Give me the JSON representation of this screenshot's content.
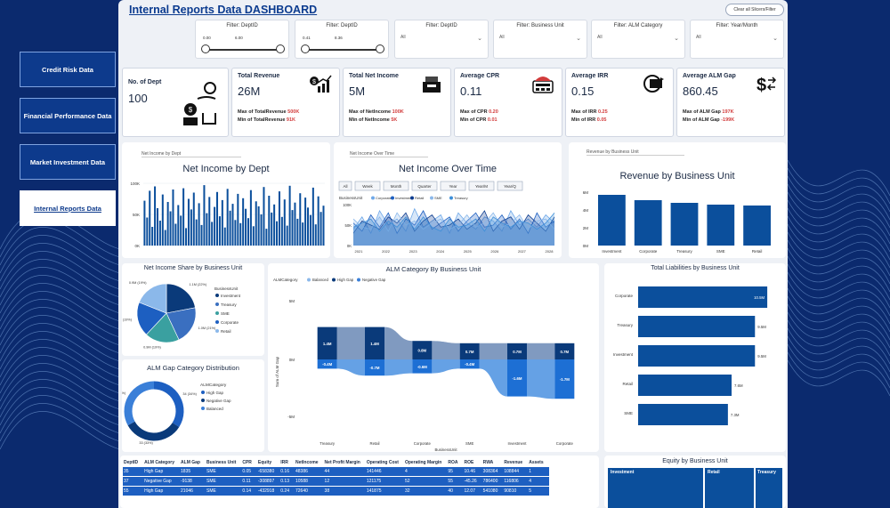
{
  "nav": {
    "items": [
      {
        "label": "Credit Risk Data",
        "active": false
      },
      {
        "label": "Financial Performance Data",
        "active": false
      },
      {
        "label": "Market Investment Data",
        "active": false
      },
      {
        "label": "Internal Reports Data",
        "active": true
      }
    ]
  },
  "header": {
    "title": "Internal Reports Data DASHBOARD",
    "clear_label": "Clear all Slicers/Filter"
  },
  "filters": [
    {
      "label": "Filter: DeptID",
      "kind": "slider",
      "min": "0.00",
      "max": "6.00"
    },
    {
      "label": "Filter: DeptID",
      "kind": "slider",
      "min": "0.41",
      "max": "8.36"
    },
    {
      "label": "Filter: DeptID",
      "kind": "dropdown",
      "value": "All"
    },
    {
      "label": "Filter: Business Unit",
      "kind": "dropdown",
      "value": "All"
    },
    {
      "label": "Filter: ALM Category",
      "kind": "dropdown",
      "value": "All"
    },
    {
      "label": "Filter: Year/Month",
      "kind": "dropdown",
      "value": "All"
    }
  ],
  "kpis": {
    "dept": {
      "title": "No. of Dept",
      "value": "100",
      "icon": "money-hand-icon"
    },
    "cards": [
      {
        "title": "Total Revenue",
        "value": "26M",
        "max_label": "Max of TotalRevenue",
        "max": "500K",
        "min_label": "Min of TotalRevenue",
        "min": "91K",
        "icon": "dollar-trend-icon"
      },
      {
        "title": "Total Net Income",
        "value": "5M",
        "max_label": "Max of NetIncome",
        "max": "100K",
        "min_label": "Min of NetIncome",
        "min": "5K",
        "icon": "cash-register-icon"
      },
      {
        "title": "Average CPR",
        "value": "0.11",
        "max_label": "Max of CPR",
        "max": "0.20",
        "min_label": "Min of CPR",
        "min": "0.01",
        "icon": "calculator-icon"
      },
      {
        "title": "Average IRR",
        "value": "0.15",
        "max_label": "Max of IRR",
        "max": "0.25",
        "min_label": "Min of IRR",
        "min": "0.05",
        "icon": "refund-icon"
      },
      {
        "title": "Average ALM Gap",
        "value": "860.45",
        "max_label": "Max of ALM Gap",
        "max": "197K",
        "min_label": "Min of ALM Gap",
        "min": "-199K",
        "icon": "dollar-exchange-icon"
      }
    ]
  },
  "colors": {
    "primary": "#0b4f9c",
    "dark": "#0a3a7a",
    "mid": "#2e77c8",
    "light": "#8bb8ea",
    "teal": "#3b9c9c",
    "red": "#d23b3b"
  },
  "net_income_by_dept": {
    "dropdown": "Net Income by Dept",
    "title": "Net Income by Dept",
    "y_ticks": [
      "100K",
      "50K",
      "0K"
    ],
    "values": [
      72,
      45,
      88,
      30,
      95,
      60,
      40,
      82,
      25,
      70,
      55,
      90,
      35,
      65,
      48,
      92,
      28,
      75,
      58,
      85,
      42,
      68,
      33,
      97,
      52,
      78,
      38,
      62,
      86,
      47,
      73,
      29,
      91,
      56,
      67,
      41,
      83,
      36,
      76,
      59,
      44,
      89,
      31,
      71,
      63,
      50,
      94,
      27,
      80,
      53,
      66,
      39,
      87,
      46,
      74,
      32,
      96,
      57,
      69,
      43,
      84,
      37,
      77,
      61,
      49,
      93,
      34,
      79,
      54,
      64
    ]
  },
  "net_income_over_time": {
    "dropdown": "Net Income Over Time",
    "title": "Net Income Over Time",
    "tabs": [
      "All",
      "Week",
      "Month",
      "Quarter",
      "Year",
      "Year/M",
      "Year/Q"
    ],
    "legend_label": "BusinessUnit",
    "legend": [
      "Corporate",
      "Investment",
      "Retail",
      "SME",
      "Treasury"
    ],
    "x_ticks": [
      "2021",
      "2022",
      "2023",
      "2024",
      "2025",
      "2026",
      "2027",
      "2028"
    ],
    "y_ticks": [
      "100K",
      "50K",
      "0K"
    ],
    "series": [
      {
        "name": "Corporate",
        "values": [
          40,
          70,
          30,
          85,
          50,
          65,
          35,
          90,
          45,
          60,
          75,
          30,
          80,
          55,
          40,
          70,
          60,
          35,
          85,
          50,
          65,
          45,
          75,
          55
        ]
      },
      {
        "name": "Investment",
        "values": [
          55,
          35,
          75,
          45,
          80,
          30,
          65,
          50,
          85,
          40,
          55,
          70,
          35,
          60,
          80,
          45,
          50,
          75,
          40,
          65,
          30,
          80,
          45,
          60
        ]
      },
      {
        "name": "Retail",
        "values": [
          30,
          60,
          50,
          40,
          70,
          55,
          80,
          35,
          60,
          75,
          45,
          50,
          65,
          40,
          55,
          85,
          35,
          60,
          70,
          40,
          75,
          55,
          35,
          70
        ]
      },
      {
        "name": "SME",
        "values": [
          65,
          45,
          40,
          70,
          35,
          80,
          50,
          60,
          40,
          55,
          65,
          40,
          50,
          75,
          45,
          55,
          80,
          45,
          55,
          75,
          40,
          60,
          65,
          40
        ]
      },
      {
        "name": "Treasury",
        "values": [
          45,
          55,
          65,
          35,
          60,
          45,
          70,
          40,
          70,
          45,
          35,
          65,
          45,
          50,
          65,
          35,
          70,
          55,
          45,
          60,
          55,
          40,
          55,
          80
        ]
      }
    ]
  },
  "revenue_by_bu": {
    "dropdown": "Revenue by Business Unit",
    "title": "Revenue by Business Unit",
    "y_ticks": [
      "6M",
      "4M",
      "2M",
      "0M"
    ],
    "categories": [
      "Investment",
      "Corporate",
      "Treasury",
      "SME",
      "Retail"
    ],
    "values": [
      5.7,
      5.1,
      4.8,
      4.6,
      4.5
    ]
  },
  "net_income_share": {
    "title": "Net Income Share by Business Unit",
    "legend_title": "BusinessUnit",
    "categories": [
      "Investment",
      "Treasury",
      "SME",
      "Corporate",
      "Retail"
    ],
    "values": [
      22,
      21,
      19,
      19,
      19
    ],
    "slice_labels": [
      "1.1M (22%)",
      "1.0M (21%)",
      "0.9M (19%)",
      "0.9M (19%)",
      "0.9M (19%)"
    ]
  },
  "alm_gap_distribution": {
    "title": "ALM Gap Category Distribution",
    "legend_title": "ALMCategory",
    "categories": [
      "High Gap",
      "Negative Gap",
      "Balanced"
    ],
    "values": [
      34,
      33,
      33
    ],
    "slice_labels": [
      "34 (34%)",
      "33 (33%)",
      "33 (33%)"
    ]
  },
  "alm_by_bu": {
    "title": "ALM Category By Business Unit",
    "legend_title": "ALMCategory",
    "legend": [
      "Balanced",
      "High Gap",
      "Negative Gap"
    ],
    "ylabel": "Sum of ALM Gap",
    "xlabel": "BusinessUnit",
    "y_ticks": [
      "5M",
      "0M",
      "-5M"
    ],
    "categories": [
      "Treasury",
      "Retail",
      "Corporate",
      "SME",
      "Investment",
      "Corporate"
    ],
    "positive": [
      1.4,
      1.4,
      0.8,
      0.7,
      0.7,
      0.7
    ],
    "negative": [
      -0.4,
      -0.7,
      -0.6,
      -0.4,
      -1.6,
      -1.7
    ],
    "positive_labels": [
      "1.4M",
      "1.4M",
      "0.8M",
      "0.7M",
      "0.7M",
      "0.7M"
    ],
    "negative_labels": [
      "-0.4M",
      "-0.7M",
      "-0.6M",
      "-0.4M",
      "-1.6M",
      "-1.7M"
    ]
  },
  "liabilities_by_bu": {
    "title": "Total Liabilities by Business Unit",
    "categories": [
      "Corporate",
      "Treasury",
      "Investment",
      "Retail",
      "SME"
    ],
    "values": [
      10.5,
      9.5,
      9.5,
      7.6,
      7.3
    ],
    "value_labels": [
      "10.5M",
      "9.5M",
      "9.5M",
      "7.6M",
      "7.3M"
    ]
  },
  "table": {
    "columns": [
      "DeptID",
      "ALM Category",
      "ALM Gap",
      "Business Unit",
      "CPR",
      "Equity",
      "IRR",
      "NetIncome",
      "Net Profit Margin",
      "Operating Cost",
      "Operating Margin",
      "ROA",
      "ROE",
      "RWA",
      "Revenue",
      "Assets"
    ],
    "rows": [
      [
        "35",
        "High Gap",
        "1835",
        "SME",
        "0.05",
        "-658380",
        "0.16",
        "48386",
        "44",
        "141446",
        "4",
        "95",
        "10.46",
        "308364",
        "108844",
        "1"
      ],
      [
        "37",
        "Negative Gap",
        "-9138",
        "SME",
        "0.11",
        "-308897",
        "0.13",
        "10588",
        "12",
        "121175",
        "52",
        "55",
        "-45.26",
        "786400",
        "116806",
        "4"
      ],
      [
        "55",
        "High Gap",
        "21046",
        "SME",
        "0.14",
        "-432918",
        "0.24",
        "72640",
        "38",
        "141875",
        "32",
        "40",
        "12.07",
        "541080",
        "90810",
        "5"
      ]
    ]
  },
  "equity_by_bu": {
    "title": "Equity by Business Unit",
    "categories": [
      "Investment",
      "Retail",
      "Treasury"
    ]
  }
}
